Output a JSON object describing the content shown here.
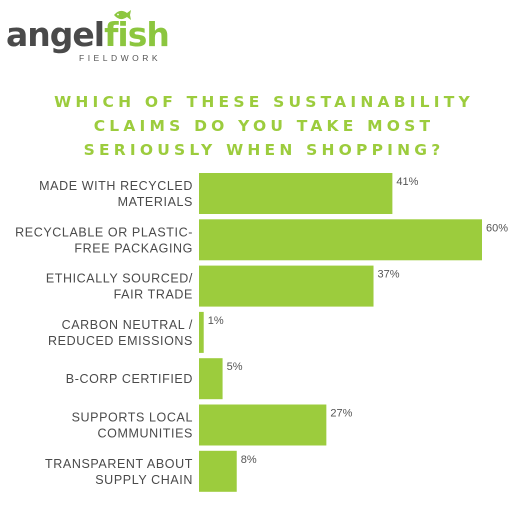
{
  "logo": {
    "word_part1": "angel",
    "word_part2": "fish",
    "subtitle": "FIELDWORK",
    "icon": "fish-icon"
  },
  "colors": {
    "bar": "#9ccc3d",
    "title": "#9ccc3d",
    "text": "#4a4a4a"
  },
  "chart_data": {
    "type": "bar",
    "orientation": "horizontal",
    "title": "WHICH OF THESE SUSTAINABILITY CLAIMS DO YOU TAKE MOST SERIOUSLY WHEN SHOPPING?",
    "title_lines": [
      "WHICH OF THESE SUSTAINABILITY",
      "CLAIMS DO YOU TAKE MOST",
      "SERIOUSLY WHEN SHOPPING?"
    ],
    "categories": [
      [
        "MADE WITH RECYCLED",
        "MATERIALS"
      ],
      [
        "RECYCLABLE OR PLASTIC-",
        "FREE PACKAGING"
      ],
      [
        "ETHICALLY SOURCED/",
        "FAIR TRADE"
      ],
      [
        "CARBON NEUTRAL /",
        "REDUCED EMISSIONS"
      ],
      [
        "B-CORP CERTIFIED"
      ],
      [
        "SUPPORTS LOCAL",
        "COMMUNITIES"
      ],
      [
        "TRANSPARENT ABOUT",
        "SUPPLY CHAIN"
      ]
    ],
    "values": [
      41,
      60,
      37,
      1,
      5,
      27,
      8
    ],
    "value_labels": [
      "41%",
      "60%",
      "37%",
      "1%",
      "5%",
      "27%",
      "8%"
    ],
    "unit": "%",
    "xlim": [
      0,
      60
    ],
    "grid": false,
    "legend": "none"
  }
}
